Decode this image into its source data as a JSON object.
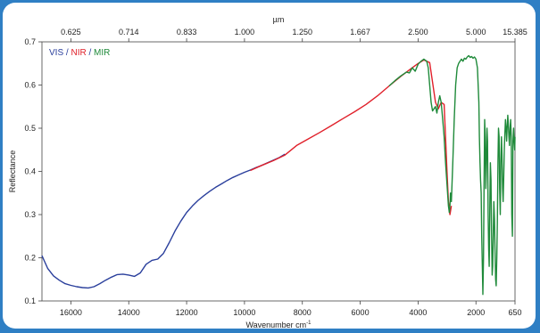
{
  "chart_data": {
    "type": "line",
    "xlabel": "Wavenumber cm",
    "xlabel_sup": "-1",
    "x2label": "µm",
    "ylabel": "Reflectance",
    "xlim": [
      17000,
      650
    ],
    "ylim": [
      0.1,
      0.7
    ],
    "x_reversed": true,
    "grid": false,
    "legend_position": "top-left",
    "x_ticks": [
      16000,
      14000,
      12000,
      10000,
      8000,
      6000,
      4000,
      2000,
      650
    ],
    "x_tick_labels": [
      "16000",
      "14000",
      "12000",
      "10000",
      "8000",
      "6000",
      "4000",
      "2000",
      "650"
    ],
    "x2_ticks": [
      16000,
      14000,
      12000,
      10000,
      8000,
      6000,
      4000,
      2000,
      650
    ],
    "x2_tick_labels": [
      "0.625",
      "0.714",
      "0.833",
      "1.000",
      "1.250",
      "1.667",
      "2.500",
      "5.000",
      "15.385"
    ],
    "y_ticks": [
      0.1,
      0.2,
      0.3,
      0.4,
      0.5,
      0.6,
      0.7
    ],
    "y_tick_labels": [
      "0.1",
      "0.2",
      "0.3",
      "0.4",
      "0.5",
      "0.6",
      "0.7"
    ],
    "legend": [
      {
        "label": "VIS",
        "color": "#2a3f9c"
      },
      {
        "label": " / ",
        "color": "#2a3f9c"
      },
      {
        "label": "NIR",
        "color": "#e0202a"
      },
      {
        "label": " / ",
        "color": "#2a3f9c"
      },
      {
        "label": "MIR",
        "color": "#1f8a3a"
      }
    ],
    "series": [
      {
        "name": "VIS",
        "color": "#2a3f9c",
        "x": [
          17000,
          16800,
          16600,
          16400,
          16200,
          16000,
          15800,
          15600,
          15400,
          15200,
          15000,
          14800,
          14600,
          14400,
          14200,
          14000,
          13800,
          13600,
          13400,
          13200,
          13000,
          12800,
          12600,
          12400,
          12200,
          12000,
          11800,
          11600,
          11400,
          11200,
          11000,
          10800,
          10600,
          10400,
          10200,
          10000,
          9800,
          9600,
          9400,
          9200,
          9000,
          8800,
          8600
        ],
        "y": [
          0.205,
          0.175,
          0.158,
          0.148,
          0.14,
          0.136,
          0.133,
          0.131,
          0.13,
          0.133,
          0.14,
          0.148,
          0.155,
          0.161,
          0.162,
          0.16,
          0.157,
          0.165,
          0.185,
          0.194,
          0.197,
          0.21,
          0.235,
          0.262,
          0.285,
          0.305,
          0.32,
          0.333,
          0.344,
          0.354,
          0.363,
          0.371,
          0.379,
          0.386,
          0.392,
          0.398,
          0.403,
          0.409,
          0.414,
          0.42,
          0.426,
          0.432,
          0.44
        ]
      },
      {
        "name": "NIR",
        "color": "#e0202a",
        "x": [
          9800,
          9400,
          9000,
          8600,
          8200,
          7800,
          7400,
          7000,
          6600,
          6200,
          5800,
          5400,
          5000,
          4600,
          4200,
          4000,
          3800,
          3600,
          3400,
          3300,
          3200,
          3100,
          3000,
          2950,
          2900,
          2850
        ],
        "y": [
          0.402,
          0.414,
          0.425,
          0.438,
          0.46,
          0.475,
          0.49,
          0.506,
          0.522,
          0.538,
          0.555,
          0.575,
          0.598,
          0.62,
          0.64,
          0.65,
          0.658,
          0.652,
          0.56,
          0.545,
          0.56,
          0.555,
          0.4,
          0.33,
          0.3,
          0.32
        ]
      },
      {
        "name": "MIR",
        "color": "#1f8a3a",
        "x": [
          5000,
          4800,
          4600,
          4400,
          4300,
          4200,
          4100,
          4000,
          3900,
          3800,
          3700,
          3650,
          3600,
          3550,
          3500,
          3450,
          3400,
          3350,
          3300,
          3250,
          3200,
          3150,
          3100,
          3050,
          3000,
          2950,
          2920,
          2900,
          2880,
          2850,
          2800,
          2750,
          2700,
          2650,
          2600,
          2550,
          2500,
          2450,
          2400,
          2350,
          2300,
          2250,
          2200,
          2150,
          2100,
          2050,
          2000,
          1950,
          1900,
          1880,
          1860,
          1840,
          1820,
          1800,
          1780,
          1760,
          1740,
          1720,
          1700,
          1680,
          1660,
          1640,
          1620,
          1600,
          1580,
          1560,
          1540,
          1520,
          1500,
          1480,
          1460,
          1440,
          1420,
          1400,
          1380,
          1360,
          1340,
          1320,
          1300,
          1280,
          1260,
          1240,
          1220,
          1200,
          1180,
          1160,
          1140,
          1120,
          1100,
          1080,
          1060,
          1040,
          1020,
          1000,
          980,
          960,
          940,
          920,
          900,
          880,
          860,
          840,
          820,
          800,
          780,
          760,
          740,
          720,
          700,
          680,
          660,
          650
        ],
        "y": [
          0.598,
          0.61,
          0.621,
          0.63,
          0.628,
          0.64,
          0.632,
          0.648,
          0.655,
          0.66,
          0.655,
          0.64,
          0.6,
          0.56,
          0.54,
          0.545,
          0.55,
          0.535,
          0.56,
          0.575,
          0.56,
          0.52,
          0.48,
          0.42,
          0.37,
          0.32,
          0.305,
          0.32,
          0.35,
          0.33,
          0.42,
          0.52,
          0.6,
          0.64,
          0.65,
          0.655,
          0.66,
          0.655,
          0.662,
          0.66,
          0.665,
          0.668,
          0.664,
          0.666,
          0.662,
          0.665,
          0.66,
          0.64,
          0.56,
          0.48,
          0.42,
          0.38,
          0.35,
          0.25,
          0.18,
          0.115,
          0.2,
          0.36,
          0.52,
          0.48,
          0.36,
          0.42,
          0.5,
          0.47,
          0.3,
          0.22,
          0.18,
          0.32,
          0.42,
          0.38,
          0.26,
          0.16,
          0.18,
          0.26,
          0.33,
          0.29,
          0.22,
          0.15,
          0.135,
          0.2,
          0.28,
          0.42,
          0.5,
          0.48,
          0.36,
          0.3,
          0.42,
          0.48,
          0.44,
          0.36,
          0.33,
          0.39,
          0.45,
          0.49,
          0.52,
          0.5,
          0.47,
          0.5,
          0.53,
          0.51,
          0.48,
          0.46,
          0.5,
          0.52,
          0.48,
          0.3,
          0.25,
          0.47,
          0.5,
          0.47,
          0.45,
          0.48
        ]
      }
    ]
  }
}
